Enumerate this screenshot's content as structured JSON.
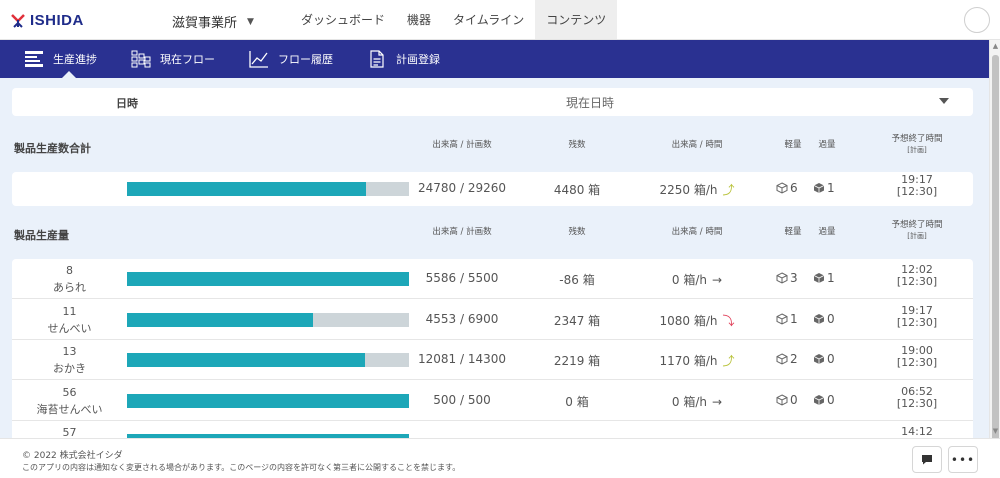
{
  "header": {
    "logo_text": "ISHIDA",
    "site": "滋賀事業所",
    "tabs": [
      {
        "label": "ダッシュボード"
      },
      {
        "label": "機器"
      },
      {
        "label": "タイムライン"
      },
      {
        "label": "コンテンツ"
      }
    ]
  },
  "subnav": {
    "items": [
      {
        "label": "生産進捗",
        "icon": "progress-list-icon"
      },
      {
        "label": "現在フロー",
        "icon": "flow-grid-icon"
      },
      {
        "label": "フロー履歴",
        "icon": "line-chart-icon"
      },
      {
        "label": "計画登録",
        "icon": "document-icon"
      }
    ]
  },
  "date_filter": {
    "label": "日時",
    "value": "現在日時"
  },
  "total_section": {
    "title": "製品生産数合計",
    "headers": {
      "plan": "出来高 / 計画数",
      "remaining": "残数",
      "rate": "出来高 / 時間",
      "light": "軽量",
      "over": "過量",
      "end": "予想終了時間",
      "end_sub": "[計画]"
    },
    "row": {
      "progress": 0.847,
      "plan": "24780 / 29260",
      "remaining": "4480 箱",
      "rate": "2250 箱/h",
      "trend": "⤴",
      "light": "6",
      "over": "1",
      "end": "19:17",
      "end_plan": "[12:30]"
    }
  },
  "product_section": {
    "title": "製品生産量",
    "headers": {
      "plan": "出来高 / 計画数",
      "remaining": "残数",
      "rate": "出来高 / 時間",
      "light": "軽量",
      "over": "過量",
      "end": "予想終了時間",
      "end_sub": "[計画]"
    },
    "rows": [
      {
        "code": "8",
        "name": "あられ",
        "progress": 1.0,
        "plan": "5586 / 5500",
        "remaining": "-86 箱",
        "rate": "0 箱/h",
        "trend": "→",
        "light": "3",
        "over": "1",
        "end": "12:02",
        "end_plan": "[12:30]"
      },
      {
        "code": "11",
        "name": "せんべい",
        "progress": 0.66,
        "plan": "4553 / 6900",
        "remaining": "2347 箱",
        "rate": "1080 箱/h",
        "trend": "⤵",
        "light": "1",
        "over": "0",
        "end": "19:17",
        "end_plan": "[12:30]"
      },
      {
        "code": "13",
        "name": "おかき",
        "progress": 0.845,
        "plan": "12081 / 14300",
        "remaining": "2219 箱",
        "rate": "1170 箱/h",
        "trend": "⤴",
        "light": "2",
        "over": "0",
        "end": "19:00",
        "end_plan": "[12:30]"
      },
      {
        "code": "56",
        "name": "海苔せんべい",
        "progress": 1.0,
        "plan": "500 / 500",
        "remaining": "0 箱",
        "rate": "0 箱/h",
        "trend": "→",
        "light": "0",
        "over": "0",
        "end": "06:52",
        "end_plan": "[12:30]"
      },
      {
        "code": "57",
        "name": "",
        "progress": 1.0,
        "plan": "",
        "remaining": "",
        "rate": "",
        "trend": "",
        "light": "",
        "over": "",
        "end": "14:12",
        "end_plan": ""
      }
    ]
  },
  "colors": {
    "navbar": "#2a3191",
    "bar_fill": "#1da7b8",
    "bar_bg": "#cdd5d9",
    "trend_up": "#b8c23a",
    "trend_down": "#e0405a"
  },
  "footer": {
    "copyright": "© 2022 株式会社イシダ",
    "notice": "このアプリの内容は通知なく変更される場合があります。このページの内容を許可なく第三者に公開することを禁じます。"
  }
}
